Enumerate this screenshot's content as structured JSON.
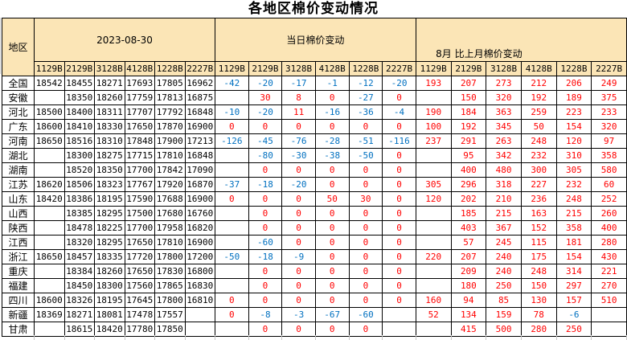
{
  "title": "各地区棉价变动情况",
  "colors": {
    "negative_change": "#0070C0",
    "positive_change": "#FF0000",
    "header_background": "#FBE5B6",
    "table_border": "#000000"
  },
  "table": {
    "region_header": "地区",
    "groups": [
      {
        "label": "2023-08-30"
      },
      {
        "label": "当日棉价变动"
      },
      {
        "label": "8月 比上月棉价变动"
      }
    ],
    "grade_codes": [
      "1129B",
      "2129B",
      "3128B",
      "4128B",
      "1228B",
      "2227B"
    ],
    "rows": [
      {
        "region": "全国",
        "prices": [
          "18542",
          "18455",
          "18271",
          "17693",
          "17805",
          "16962"
        ],
        "daily": [
          "-42",
          "-20",
          "-17",
          "-1",
          "-12",
          "-20"
        ],
        "monthly": [
          "193",
          "207",
          "273",
          "212",
          "206",
          "249"
        ]
      },
      {
        "region": "安徽",
        "prices": [
          "",
          "18350",
          "18260",
          "17759",
          "17813",
          "16875"
        ],
        "daily": [
          "",
          "30",
          "8",
          "0",
          "-27",
          "0"
        ],
        "monthly": [
          "",
          "150",
          "320",
          "192",
          "189",
          "375"
        ]
      },
      {
        "region": "河北",
        "prices": [
          "18500",
          "18400",
          "18311",
          "17707",
          "17792",
          "16848"
        ],
        "daily": [
          "-10",
          "-20",
          "11",
          "-16",
          "-36",
          "-4"
        ],
        "monthly": [
          "190",
          "184",
          "363",
          "259",
          "223",
          "233"
        ]
      },
      {
        "region": "广东",
        "prices": [
          "18600",
          "18410",
          "18330",
          "17650",
          "17870",
          "16900"
        ],
        "daily": [
          "0",
          "0",
          "0",
          "0",
          "0",
          "0"
        ],
        "monthly": [
          "100",
          "192",
          "345",
          "50",
          "154",
          "320"
        ]
      },
      {
        "region": "河南",
        "prices": [
          "18650",
          "18516",
          "18310",
          "17848",
          "17900",
          "17213"
        ],
        "daily": [
          "-126",
          "-45",
          "-76",
          "-28",
          "-51",
          "-116"
        ],
        "monthly": [
          "237",
          "291",
          "263",
          "248",
          "120",
          "97"
        ]
      },
      {
        "region": "湖北",
        "prices": [
          "",
          "18300",
          "18275",
          "17715",
          "17810",
          "16848"
        ],
        "daily": [
          "",
          "-80",
          "-30",
          "-38",
          "-50",
          "0"
        ],
        "monthly": [
          "",
          "95",
          "342",
          "232",
          "310",
          "358"
        ]
      },
      {
        "region": "湖南",
        "prices": [
          "",
          "18520",
          "18350",
          "17700",
          "17842",
          "17090"
        ],
        "daily": [
          "",
          "0",
          "0",
          "0",
          "0",
          "0"
        ],
        "monthly": [
          "",
          "400",
          "480",
          "300",
          "305",
          "580"
        ]
      },
      {
        "region": "江苏",
        "prices": [
          "18620",
          "18506",
          "18323",
          "17767",
          "17920",
          "16870"
        ],
        "daily": [
          "-37",
          "-18",
          "-20",
          "0",
          "0",
          "0"
        ],
        "monthly": [
          "305",
          "296",
          "318",
          "227",
          "232",
          "60"
        ]
      },
      {
        "region": "山东",
        "prices": [
          "18420",
          "18386",
          "18195",
          "17590",
          "17688",
          "16900"
        ],
        "daily": [
          "0",
          "0",
          "0",
          "50",
          "30",
          "0"
        ],
        "monthly": [
          "120",
          "202",
          "210",
          "236",
          "248",
          "252"
        ]
      },
      {
        "region": "山西",
        "prices": [
          "",
          "18385",
          "18295",
          "17500",
          "17680",
          "16760"
        ],
        "daily": [
          "",
          "0",
          "0",
          "0",
          "0",
          "0"
        ],
        "monthly": [
          "",
          "185",
          "215",
          "163",
          "215",
          "260"
        ]
      },
      {
        "region": "陕西",
        "prices": [
          "",
          "18478",
          "18225",
          "17700",
          "17958",
          "16820"
        ],
        "daily": [
          "",
          "0",
          "0",
          "0",
          "0",
          "0"
        ],
        "monthly": [
          "",
          "403",
          "367",
          "152",
          "358",
          "400"
        ]
      },
      {
        "region": "江西",
        "prices": [
          "",
          "18320",
          "18295",
          "17650",
          "17810",
          "16900"
        ],
        "daily": [
          "",
          "-60",
          "0",
          "0",
          "0",
          "0"
        ],
        "monthly": [
          "",
          "57",
          "245",
          "115",
          "181",
          "280"
        ]
      },
      {
        "region": "浙江",
        "prices": [
          "18650",
          "18457",
          "18335",
          "17720",
          "17800",
          "17200"
        ],
        "daily": [
          "-50",
          "-18",
          "-9",
          "0",
          "0",
          "0"
        ],
        "monthly": [
          "220",
          "207",
          "240",
          "175",
          "154",
          "430"
        ]
      },
      {
        "region": "重庆",
        "prices": [
          "",
          "18384",
          "18260",
          "17650",
          "17830",
          "16800"
        ],
        "daily": [
          "",
          "0",
          "0",
          "0",
          "0",
          "0"
        ],
        "monthly": [
          "",
          "209",
          "240",
          "248",
          "314",
          "221"
        ]
      },
      {
        "region": "福建",
        "prices": [
          "",
          "18450",
          "18300",
          "17560",
          "17865",
          "16830"
        ],
        "daily": [
          "",
          "0",
          "0",
          "0",
          "0",
          "0"
        ],
        "monthly": [
          "",
          "180",
          "250",
          "150",
          "297",
          "270"
        ]
      },
      {
        "region": "四川",
        "prices": [
          "18600",
          "18326",
          "18195",
          "17645",
          "17800",
          "16810"
        ],
        "daily": [
          "0",
          "0",
          "0",
          "0",
          "0",
          "0"
        ],
        "monthly": [
          "160",
          "94",
          "85",
          "130",
          "157",
          "510"
        ]
      },
      {
        "region": "新疆",
        "prices": [
          "18369",
          "18271",
          "18081",
          "17478",
          "17557",
          ""
        ],
        "daily": [
          "0",
          "-8",
          "-3",
          "-67",
          "-60",
          ""
        ],
        "monthly": [
          "52",
          "134",
          "159",
          "78",
          "-6",
          ""
        ]
      },
      {
        "region": "甘肃",
        "prices": [
          "",
          "18615",
          "18420",
          "17780",
          "17850",
          ""
        ],
        "daily": [
          "",
          "0",
          "0",
          "0",
          "0",
          ""
        ],
        "monthly": [
          "",
          "415",
          "500",
          "280",
          "250",
          ""
        ]
      }
    ]
  }
}
